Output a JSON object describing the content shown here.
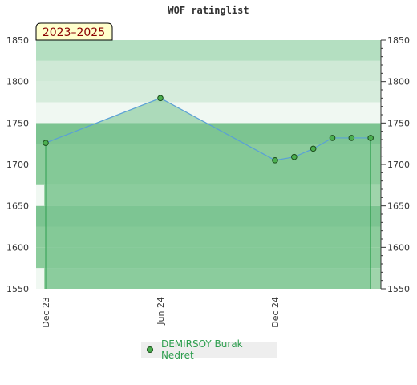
{
  "chart_data": {
    "type": "area",
    "title": "WOF ratinglist",
    "period_label": "2023–2025",
    "ylim": [
      1550,
      1850
    ],
    "y_ticks": [
      1550,
      1600,
      1650,
      1700,
      1750,
      1800,
      1850
    ],
    "x_tick_labels": [
      "Dec 23",
      "Jun 24",
      "Dec 24"
    ],
    "legend_position": "bottom-center",
    "series": [
      {
        "name": "DEMIRSOY Burak Nedret",
        "color": "#4caf50",
        "line_color": "#5aa0d6",
        "points": [
          {
            "x": "2023-12",
            "y": 1726
          },
          {
            "x": "2024-06",
            "y": 1780
          },
          {
            "x": "2024-12",
            "y": 1705
          },
          {
            "x": "2025-01",
            "y": 1709
          },
          {
            "x": "2025-02",
            "y": 1719
          },
          {
            "x": "2025-03",
            "y": 1732
          },
          {
            "x": "2025-04",
            "y": 1732
          },
          {
            "x": "2025-05",
            "y": 1732
          }
        ]
      }
    ]
  }
}
